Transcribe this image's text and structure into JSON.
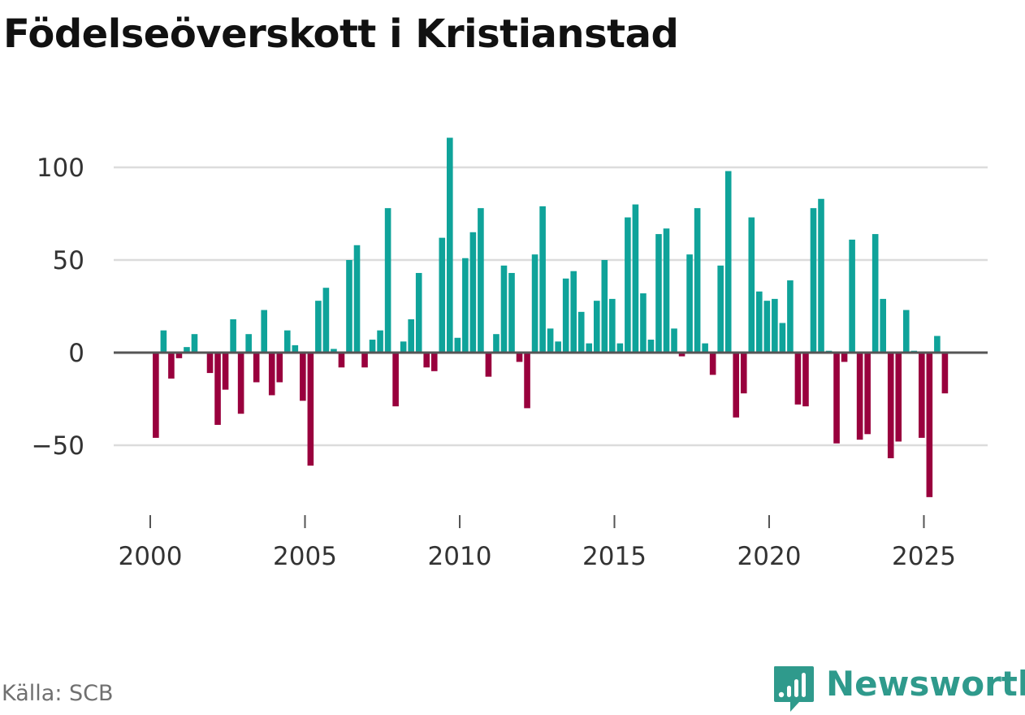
{
  "title": "Födelseöverskott i Kristianstad",
  "source": "Källa: SCB",
  "brand": {
    "name": "Newsworthy",
    "icon": "newsworthy-logo-icon",
    "color": "#2f9a8c"
  },
  "colors": {
    "positive": "#0fa39a",
    "negative": "#99003d",
    "gridline": "#dcdcdc",
    "zero_line": "#555555"
  },
  "chart_data": {
    "type": "bar",
    "title": "Födelseöverskott i Kristianstad",
    "xlabel": "",
    "ylabel": "",
    "frequency": "quarterly",
    "ylim": [
      -80,
      120
    ],
    "xlim": [
      1999.75,
      2028
    ],
    "grid": true,
    "y_ticks": [
      -50,
      0,
      50,
      100
    ],
    "y_tick_labels": [
      "−50",
      "0",
      "50",
      "100"
    ],
    "x_ticks": [
      2000,
      2005,
      2010,
      2015,
      2020,
      2025
    ],
    "x_tick_labels": [
      "2000",
      "2005",
      "2010",
      "2015",
      "2020",
      "2025"
    ],
    "start_period": "2000 Q1",
    "values": [
      -46,
      12,
      -14,
      -3,
      3,
      10,
      0,
      -11,
      -39,
      -20,
      18,
      -33,
      10,
      -16,
      23,
      -23,
      -16,
      12,
      4,
      -26,
      -61,
      28,
      35,
      2,
      -8,
      50,
      58,
      -8,
      7,
      12,
      78,
      -29,
      6,
      18,
      43,
      -8,
      -10,
      62,
      116,
      8,
      51,
      65,
      78,
      -13,
      10,
      47,
      43,
      -5,
      -30,
      53,
      79,
      13,
      6,
      40,
      44,
      22,
      5,
      28,
      50,
      29,
      5,
      73,
      80,
      32,
      7,
      64,
      67,
      13,
      -2,
      53,
      78,
      5,
      -12,
      47,
      98,
      -35,
      -22,
      73,
      33,
      28,
      29,
      16,
      39,
      -28,
      -29,
      78,
      83,
      1,
      -49,
      -5,
      61,
      -47,
      -44,
      64,
      29,
      -57,
      -48,
      23,
      1,
      -46,
      -78,
      9,
      -22
    ]
  }
}
